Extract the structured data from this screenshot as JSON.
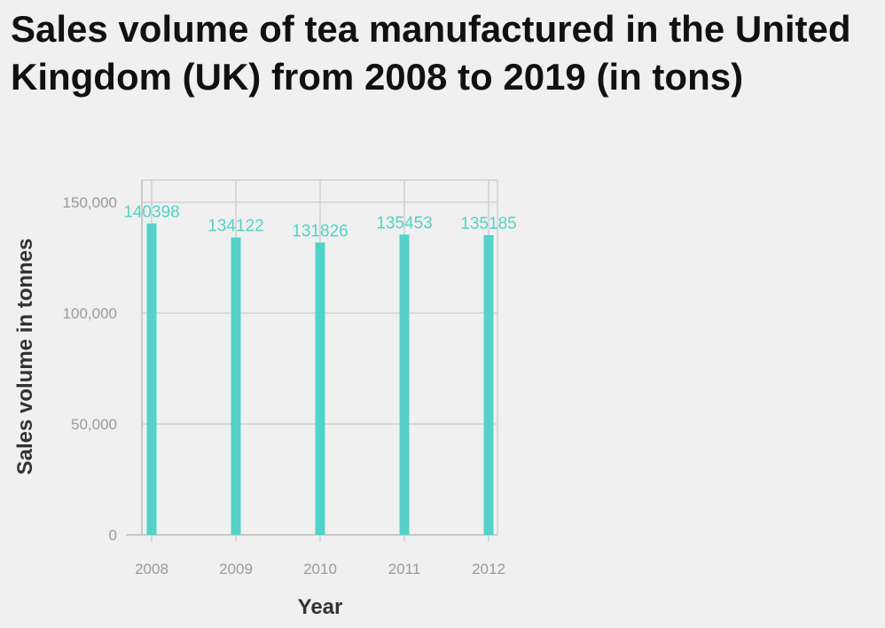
{
  "chart_data": {
    "type": "bar",
    "title": "Sales volume of tea manufactured in the United Kingdom (UK) from 2008 to 2019 (in tons)",
    "xlabel": "Year",
    "ylabel": "Sales volume in tonnes",
    "categories": [
      "2008",
      "2009",
      "2010",
      "2011",
      "2012"
    ],
    "values": [
      140398,
      134122,
      131826,
      135453,
      135185
    ],
    "data_labels": [
      "140398",
      "134122",
      "131826",
      "135453",
      "135185"
    ],
    "ylim": [
      0,
      150000
    ],
    "yticks": [
      0,
      50000,
      100000,
      150000
    ],
    "ytick_labels": [
      "0",
      "50,000",
      "100,000",
      "150,000"
    ],
    "grid": true,
    "bar_color": "#52d3c9",
    "label_color": "#52d3c9"
  }
}
